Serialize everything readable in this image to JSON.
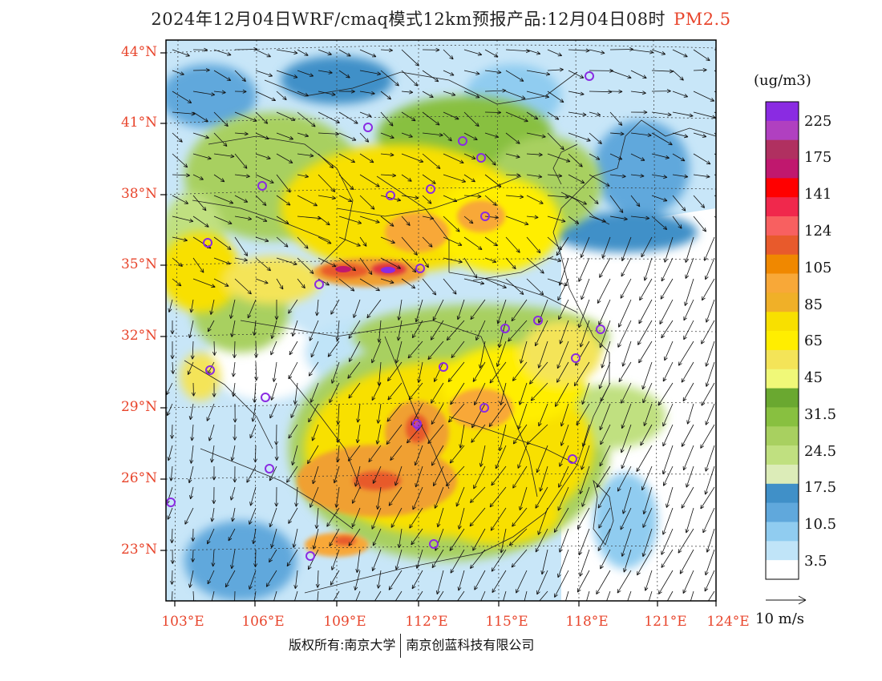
{
  "title": {
    "main": "2024年12月04日WRF/cmaq模式12km预报产品:12月04日08时",
    "species": "PM2.5"
  },
  "map": {
    "lat_labels": [
      "44°N",
      "41°N",
      "38°N",
      "35°N",
      "32°N",
      "29°N",
      "26°N",
      "23°N"
    ],
    "lon_labels": [
      "103°E",
      "106°E",
      "109°E",
      "112°E",
      "115°E",
      "118°E",
      "121°E",
      "124°E"
    ],
    "colors": {
      "axis_labels": "#e8452c"
    }
  },
  "colorbar": {
    "unit": "(ug/m3)",
    "labels": [
      "225",
      "175",
      "141",
      "124",
      "105",
      "85",
      "65",
      "45",
      "31.5",
      "24.5",
      "17.5",
      "10.5",
      "3.5"
    ],
    "colors": [
      "#8a2be2",
      "#b040c0",
      "#b03060",
      "#c0186e",
      "#ff0000",
      "#f0284c",
      "#f86060",
      "#e85a2c",
      "#f08800",
      "#f8a838",
      "#f0b028",
      "#f8e000",
      "#ffee00",
      "#f4e458",
      "#f0f878",
      "#6aa830",
      "#88c040",
      "#a8d060",
      "#c0e080",
      "#dcecb8",
      "#4090c8",
      "#60a8dc",
      "#90ccf0",
      "#c0e4f8",
      "#ffffff"
    ]
  },
  "vector_legend": {
    "label": "10 m/s"
  },
  "copyright": {
    "left": "版权所有:南京大学",
    "right": "南京创蓝科技有限公司"
  }
}
